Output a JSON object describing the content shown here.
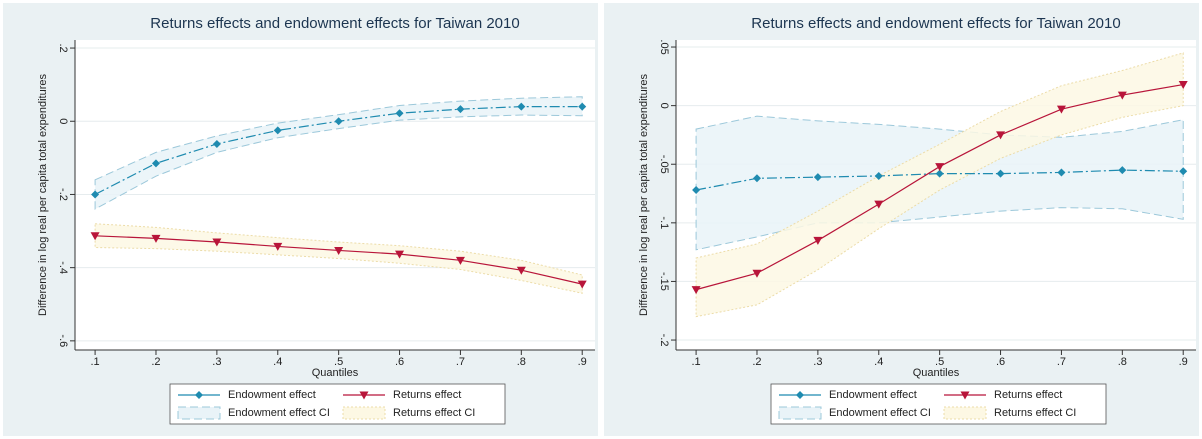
{
  "chart_data": [
    {
      "type": "line",
      "title": "Returns effects and endowment effects for Taiwan 2010",
      "x_label": "Quantiles",
      "y_label": "Difference in log real per capita total expenditures",
      "x": [
        0.1,
        0.2,
        0.3,
        0.4,
        0.5,
        0.6,
        0.7,
        0.8,
        0.9
      ],
      "xlim": [
        0.067,
        0.921
      ],
      "xticks": [
        {
          "value": 0.1,
          "label": ".1"
        },
        {
          "value": 0.2,
          "label": ".2"
        },
        {
          "value": 0.3,
          "label": ".3"
        },
        {
          "value": 0.4,
          "label": ".4"
        },
        {
          "value": 0.5,
          "label": ".5"
        },
        {
          "value": 0.6,
          "label": ".6"
        },
        {
          "value": 0.7,
          "label": ".7"
        },
        {
          "value": 0.8,
          "label": ".8"
        },
        {
          "value": 0.9,
          "label": ".9"
        }
      ],
      "ylim": [
        -0.625,
        0.222
      ],
      "yticks": [
        {
          "value": -0.6,
          "label": "-.6"
        },
        {
          "value": -0.4,
          "label": "-.4"
        },
        {
          "value": -0.2,
          "label": "-.2"
        },
        0,
        {
          "value": 0.2,
          "label": ".2"
        }
      ],
      "grid": true,
      "series": [
        {
          "name": "Endowment effect",
          "color": "#1f8bb0",
          "marker": "diamond",
          "values": [
            -0.2,
            -0.115,
            -0.062,
            -0.025,
            0.0,
            0.022,
            0.033,
            0.04,
            0.04
          ]
        },
        {
          "name": "Returns effect",
          "color": "#b8153a",
          "marker": "triangle",
          "values": [
            -0.313,
            -0.32,
            -0.33,
            -0.342,
            -0.353,
            -0.363,
            -0.38,
            -0.407,
            -0.445
          ]
        }
      ],
      "bands": [
        {
          "name": "Endowment effect CI",
          "color": "#9cc8da",
          "fill": "#e9f3f8",
          "lower": [
            -0.24,
            -0.15,
            -0.085,
            -0.045,
            -0.02,
            0.003,
            0.012,
            0.017,
            0.015
          ],
          "upper": [
            -0.16,
            -0.085,
            -0.04,
            -0.005,
            0.018,
            0.043,
            0.055,
            0.063,
            0.067
          ]
        },
        {
          "name": "Returns effect CI",
          "color": "#ecdca8",
          "fill": "#fdf8e4",
          "lower": [
            -0.345,
            -0.348,
            -0.355,
            -0.365,
            -0.375,
            -0.388,
            -0.405,
            -0.435,
            -0.47
          ],
          "upper": [
            -0.28,
            -0.29,
            -0.305,
            -0.318,
            -0.33,
            -0.34,
            -0.355,
            -0.38,
            -0.42
          ]
        }
      ]
    },
    {
      "type": "line",
      "title": "Returns effects and endowment effects for Taiwan 2010",
      "x_label": "Quantiles",
      "y_label": "Difference in log real per capita total expenditures",
      "x": [
        0.1,
        0.2,
        0.3,
        0.4,
        0.5,
        0.6,
        0.7,
        0.8,
        0.9
      ],
      "xlim": [
        0.067,
        0.921
      ],
      "xticks": [
        {
          "value": 0.1,
          "label": ".1"
        },
        {
          "value": 0.2,
          "label": ".2"
        },
        {
          "value": 0.3,
          "label": ".3"
        },
        {
          "value": 0.4,
          "label": ".4"
        },
        {
          "value": 0.5,
          "label": ".5"
        },
        {
          "value": 0.6,
          "label": ".6"
        },
        {
          "value": 0.7,
          "label": ".7"
        },
        {
          "value": 0.8,
          "label": ".8"
        },
        {
          "value": 0.9,
          "label": ".9"
        }
      ],
      "ylim": [
        -0.2085,
        0.056
      ],
      "yticks": [
        {
          "value": -0.2,
          "label": "-.2"
        },
        {
          "value": -0.15,
          "label": "-.15"
        },
        {
          "value": -0.1,
          "label": "-.1"
        },
        {
          "value": -0.05,
          "label": "-.05"
        },
        0,
        {
          "value": 0.05,
          "label": ".05"
        }
      ],
      "grid": true,
      "series": [
        {
          "name": "Endowment effect",
          "color": "#1f8bb0",
          "marker": "diamond",
          "values": [
            -0.072,
            -0.062,
            -0.061,
            -0.06,
            -0.058,
            -0.058,
            -0.057,
            -0.055,
            -0.056
          ]
        },
        {
          "name": "Returns effect",
          "color": "#b8153a",
          "marker": "triangle",
          "values": [
            -0.157,
            -0.143,
            -0.115,
            -0.084,
            -0.052,
            -0.025,
            -0.003,
            0.009,
            0.018
          ]
        }
      ],
      "bands": [
        {
          "name": "Endowment effect CI",
          "color": "#9cc8da",
          "fill": "#e9f3f8",
          "lower": [
            -0.123,
            -0.112,
            -0.1,
            -0.1,
            -0.095,
            -0.09,
            -0.087,
            -0.088,
            -0.097
          ],
          "upper": [
            -0.02,
            -0.009,
            -0.013,
            -0.016,
            -0.02,
            -0.025,
            -0.027,
            -0.022,
            -0.012
          ]
        },
        {
          "name": "Returns effect CI",
          "color": "#ecdca8",
          "fill": "#fdf8e4",
          "lower": [
            -0.18,
            -0.17,
            -0.14,
            -0.105,
            -0.072,
            -0.045,
            -0.025,
            -0.01,
            0.0
          ],
          "upper": [
            -0.13,
            -0.118,
            -0.09,
            -0.06,
            -0.033,
            -0.005,
            0.017,
            0.03,
            0.045
          ]
        }
      ]
    }
  ]
}
